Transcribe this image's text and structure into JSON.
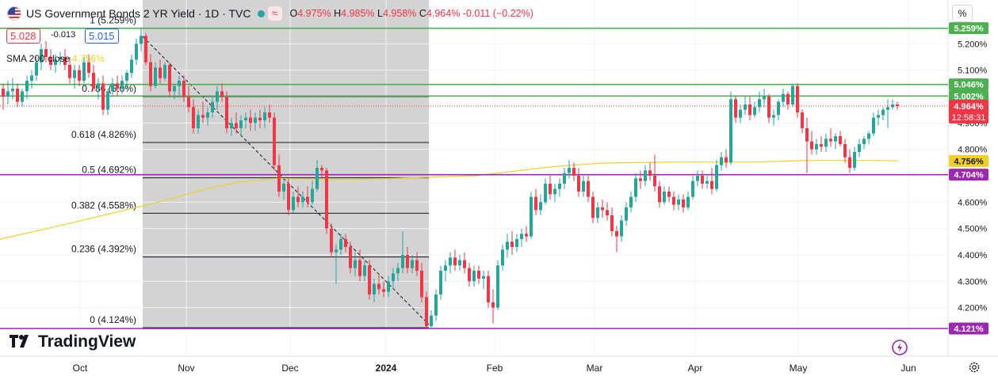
{
  "header": {
    "title": "US Government Bonds 2 YR Yield · 1D · TVC",
    "open_label": "O",
    "open": "4.975%",
    "high_label": "H",
    "high": "4.985%",
    "low_label": "L",
    "low": "4.958%",
    "close_label": "C",
    "close": "4.964%",
    "change": "-0.011 (−0.22%)",
    "approx_icon": "≈"
  },
  "quote": {
    "sell": "5.028",
    "spread": "-0.013",
    "buy": "5.015"
  },
  "sma": {
    "label": "SMA 200 close",
    "value": "4.756%"
  },
  "percent_button": "%",
  "logo_text": "TradingView",
  "colors": {
    "up": "#26a69a",
    "down": "#f23645",
    "sma": "#f2d024",
    "green_line": "#4caf50",
    "purple_line": "#9c27b0",
    "fib_zone": "#c4c4c4"
  },
  "chart_data": {
    "type": "candlestick",
    "ylim": [
      4.085,
      5.345
    ],
    "y_ticks": [
      "5.200%",
      "5.100%",
      "4.900%",
      "4.800%",
      "4.600%",
      "4.500%",
      "4.400%",
      "4.300%",
      "4.200%"
    ],
    "x_ticks": [
      "Oct",
      "Nov",
      "Dec",
      "2024",
      "Feb",
      "Mar",
      "Apr",
      "May",
      "Jun"
    ],
    "fibonacci": [
      {
        "label": "1 (5.259%)",
        "value": 5.259
      },
      {
        "label": "0.786 (5.0%)",
        "value": 5.0
      },
      {
        "label": "0.618 (4.826%)",
        "value": 4.826
      },
      {
        "label": "0.5 (4.692%)",
        "value": 4.692
      },
      {
        "label": "0.382 (4.558%)",
        "value": 4.558
      },
      {
        "label": "0.236 (4.392%)",
        "value": 4.392
      },
      {
        "label": "0 (4.124%)",
        "value": 4.124
      }
    ],
    "horizontal_levels": [
      {
        "label": "5.259%",
        "value": 5.259,
        "color": "green"
      },
      {
        "label": "5.046%",
        "value": 5.046,
        "color": "green"
      },
      {
        "label": "5.002%",
        "value": 5.002,
        "color": "green"
      },
      {
        "label": "4.704%",
        "value": 4.704,
        "color": "purple"
      },
      {
        "label": "4.121%",
        "value": 4.121,
        "color": "purple"
      }
    ],
    "current_price": {
      "label": "4.964%",
      "value": 4.964,
      "countdown": "12:58:31"
    },
    "sma_value": {
      "label": "4.756%",
      "value": 4.756
    },
    "sma_path": [
      [
        0,
        4.46
      ],
      [
        60,
        4.5
      ],
      [
        130,
        4.55
      ],
      [
        200,
        4.6
      ],
      [
        260,
        4.65
      ],
      [
        300,
        4.675
      ],
      [
        350,
        4.69
      ],
      [
        420,
        4.685
      ],
      [
        500,
        4.69
      ],
      [
        600,
        4.7
      ],
      [
        700,
        4.735
      ],
      [
        760,
        4.748
      ],
      [
        850,
        4.752
      ],
      [
        950,
        4.752
      ],
      [
        1020,
        4.758
      ],
      [
        1100,
        4.758
      ],
      [
        1133,
        4.756
      ]
    ],
    "candles": [
      [
        4,
        5.03,
        5.05,
        4.95,
        5.0
      ],
      [
        10,
        5.0,
        5.06,
        4.97,
        5.02
      ],
      [
        16,
        5.02,
        5.07,
        4.99,
        5.03
      ],
      [
        22,
        5.03,
        5.05,
        4.96,
        4.98
      ],
      [
        28,
        4.98,
        5.03,
        4.96,
        5.02
      ],
      [
        34,
        5.02,
        5.08,
        4.99,
        5.06
      ],
      [
        40,
        5.06,
        5.1,
        5.03,
        5.08
      ],
      [
        46,
        5.08,
        5.15,
        5.06,
        5.13
      ],
      [
        52,
        5.13,
        5.2,
        5.1,
        5.18
      ],
      [
        58,
        5.18,
        5.21,
        5.13,
        5.15
      ],
      [
        64,
        5.15,
        5.18,
        5.1,
        5.12
      ],
      [
        70,
        5.12,
        5.16,
        5.09,
        5.14
      ],
      [
        76,
        5.14,
        5.17,
        5.12,
        5.15
      ],
      [
        82,
        5.15,
        5.18,
        5.1,
        5.12
      ],
      [
        88,
        5.12,
        5.15,
        5.05,
        5.07
      ],
      [
        94,
        5.07,
        5.12,
        5.03,
        5.1
      ],
      [
        100,
        5.1,
        5.12,
        5.04,
        5.06
      ],
      [
        106,
        5.06,
        5.15,
        5.05,
        5.13
      ],
      [
        112,
        5.13,
        5.16,
        5.07,
        5.09
      ],
      [
        118,
        5.09,
        5.12,
        5.02,
        5.03
      ],
      [
        124,
        5.03,
        5.07,
        4.99,
        5.05
      ],
      [
        130,
        5.05,
        5.08,
        4.93,
        4.95
      ],
      [
        136,
        4.95,
        5.03,
        4.93,
        5.02
      ],
      [
        142,
        5.02,
        5.07,
        5.0,
        5.05
      ],
      [
        148,
        5.05,
        5.08,
        5.0,
        5.03
      ],
      [
        154,
        5.03,
        5.08,
        5.01,
        5.06
      ],
      [
        160,
        5.06,
        5.1,
        5.03,
        5.09
      ],
      [
        166,
        5.09,
        5.16,
        5.07,
        5.14
      ],
      [
        172,
        5.14,
        5.22,
        5.12,
        5.2
      ],
      [
        178,
        5.2,
        5.26,
        5.17,
        5.23
      ],
      [
        184,
        5.23,
        5.24,
        5.12,
        5.13
      ],
      [
        190,
        5.13,
        5.16,
        5.02,
        5.04
      ],
      [
        196,
        5.04,
        5.13,
        5.03,
        5.11
      ],
      [
        202,
        5.11,
        5.14,
        5.05,
        5.07
      ],
      [
        208,
        5.07,
        5.13,
        5.06,
        5.12
      ],
      [
        214,
        5.12,
        5.13,
        5.0,
        5.02
      ],
      [
        220,
        5.02,
        5.05,
        4.99,
        5.04
      ],
      [
        226,
        5.04,
        5.08,
        5.0,
        5.06
      ],
      [
        232,
        5.06,
        5.08,
        4.98,
        5.0
      ],
      [
        238,
        5.0,
        5.04,
        4.94,
        4.96
      ],
      [
        244,
        4.96,
        4.99,
        4.86,
        4.88
      ],
      [
        250,
        4.88,
        4.95,
        4.86,
        4.93
      ],
      [
        256,
        4.93,
        4.98,
        4.9,
        4.92
      ],
      [
        262,
        4.92,
        4.96,
        4.89,
        4.94
      ],
      [
        268,
        4.94,
        5.0,
        4.92,
        4.98
      ],
      [
        274,
        4.98,
        5.04,
        4.95,
        5.02
      ],
      [
        280,
        5.02,
        5.05,
        4.98,
        5.0
      ],
      [
        286,
        5.0,
        5.02,
        4.86,
        4.88
      ],
      [
        292,
        4.88,
        4.92,
        4.85,
        4.9
      ],
      [
        298,
        4.9,
        4.94,
        4.86,
        4.88
      ],
      [
        304,
        4.88,
        4.93,
        4.85,
        4.91
      ],
      [
        310,
        4.91,
        4.94,
        4.88,
        4.92
      ],
      [
        316,
        4.92,
        4.95,
        4.87,
        4.9
      ],
      [
        322,
        4.9,
        4.94,
        4.87,
        4.92
      ],
      [
        328,
        4.92,
        4.95,
        4.88,
        4.91
      ],
      [
        334,
        4.91,
        4.96,
        4.88,
        4.94
      ],
      [
        340,
        4.94,
        4.97,
        4.9,
        4.92
      ],
      [
        346,
        4.92,
        4.94,
        4.72,
        4.74
      ],
      [
        352,
        4.74,
        4.78,
        4.62,
        4.64
      ],
      [
        358,
        4.64,
        4.69,
        4.61,
        4.67
      ],
      [
        364,
        4.67,
        4.69,
        4.55,
        4.57
      ],
      [
        370,
        4.57,
        4.64,
        4.56,
        4.62
      ],
      [
        376,
        4.62,
        4.66,
        4.58,
        4.6
      ],
      [
        382,
        4.6,
        4.64,
        4.58,
        4.62
      ],
      [
        388,
        4.62,
        4.66,
        4.58,
        4.6
      ],
      [
        394,
        4.6,
        4.68,
        4.59,
        4.65
      ],
      [
        400,
        4.65,
        4.76,
        4.64,
        4.73
      ],
      [
        406,
        4.73,
        4.74,
        4.69,
        4.72
      ],
      [
        412,
        4.72,
        4.73,
        4.48,
        4.5
      ],
      [
        418,
        4.5,
        4.52,
        4.39,
        4.41
      ],
      [
        424,
        4.41,
        4.44,
        4.29,
        4.42
      ],
      [
        430,
        4.42,
        4.48,
        4.4,
        4.46
      ],
      [
        436,
        4.46,
        4.48,
        4.41,
        4.43
      ],
      [
        442,
        4.43,
        4.45,
        4.33,
        4.35
      ],
      [
        448,
        4.35,
        4.41,
        4.32,
        4.38
      ],
      [
        454,
        4.38,
        4.42,
        4.3,
        4.32
      ],
      [
        460,
        4.32,
        4.38,
        4.3,
        4.36
      ],
      [
        466,
        4.36,
        4.38,
        4.23,
        4.25
      ],
      [
        472,
        4.25,
        4.31,
        4.22,
        4.29
      ],
      [
        478,
        4.29,
        4.33,
        4.25,
        4.27
      ],
      [
        484,
        4.27,
        4.3,
        4.24,
        4.26
      ],
      [
        490,
        4.26,
        4.32,
        4.24,
        4.3
      ],
      [
        496,
        4.3,
        4.35,
        4.27,
        4.33
      ],
      [
        502,
        4.33,
        4.37,
        4.3,
        4.35
      ],
      [
        508,
        4.35,
        4.49,
        4.33,
        4.4
      ],
      [
        514,
        4.4,
        4.43,
        4.33,
        4.35
      ],
      [
        520,
        4.35,
        4.4,
        4.33,
        4.38
      ],
      [
        526,
        4.38,
        4.41,
        4.32,
        4.34
      ],
      [
        532,
        4.34,
        4.37,
        4.22,
        4.24
      ],
      [
        538,
        4.24,
        4.26,
        4.12,
        4.13
      ],
      [
        544,
        4.13,
        4.19,
        4.12,
        4.17
      ],
      [
        550,
        4.17,
        4.27,
        4.15,
        4.25
      ],
      [
        556,
        4.25,
        4.36,
        4.23,
        4.34
      ],
      [
        562,
        4.34,
        4.38,
        4.3,
        4.36
      ],
      [
        568,
        4.36,
        4.41,
        4.33,
        4.39
      ],
      [
        574,
        4.39,
        4.42,
        4.34,
        4.36
      ],
      [
        580,
        4.36,
        4.4,
        4.34,
        4.38
      ],
      [
        586,
        4.38,
        4.41,
        4.33,
        4.35
      ],
      [
        592,
        4.35,
        4.37,
        4.28,
        4.3
      ],
      [
        598,
        4.3,
        4.36,
        4.28,
        4.34
      ],
      [
        604,
        4.34,
        4.36,
        4.29,
        4.31
      ],
      [
        610,
        4.31,
        4.34,
        4.27,
        4.32
      ],
      [
        616,
        4.32,
        4.34,
        4.2,
        4.22
      ],
      [
        622,
        4.22,
        4.27,
        4.14,
        4.2
      ],
      [
        628,
        4.2,
        4.38,
        4.19,
        4.36
      ],
      [
        634,
        4.36,
        4.44,
        4.34,
        4.42
      ],
      [
        640,
        4.42,
        4.48,
        4.39,
        4.45
      ],
      [
        646,
        4.45,
        4.49,
        4.4,
        4.43
      ],
      [
        652,
        4.43,
        4.48,
        4.41,
        4.46
      ],
      [
        658,
        4.46,
        4.5,
        4.43,
        4.48
      ],
      [
        664,
        4.48,
        4.51,
        4.45,
        4.47
      ],
      [
        670,
        4.47,
        4.64,
        4.46,
        4.62
      ],
      [
        676,
        4.62,
        4.65,
        4.55,
        4.57
      ],
      [
        682,
        4.57,
        4.63,
        4.55,
        4.6
      ],
      [
        688,
        4.6,
        4.69,
        4.59,
        4.67
      ],
      [
        694,
        4.67,
        4.7,
        4.61,
        4.63
      ],
      [
        700,
        4.63,
        4.67,
        4.6,
        4.65
      ],
      [
        706,
        4.65,
        4.69,
        4.62,
        4.67
      ],
      [
        712,
        4.67,
        4.73,
        4.65,
        4.71
      ],
      [
        718,
        4.71,
        4.76,
        4.69,
        4.73
      ],
      [
        724,
        4.73,
        4.75,
        4.68,
        4.7
      ],
      [
        730,
        4.7,
        4.73,
        4.62,
        4.64
      ],
      [
        736,
        4.64,
        4.7,
        4.62,
        4.68
      ],
      [
        742,
        4.68,
        4.7,
        4.6,
        4.62
      ],
      [
        748,
        4.62,
        4.64,
        4.52,
        4.54
      ],
      [
        754,
        4.54,
        4.6,
        4.52,
        4.58
      ],
      [
        760,
        4.58,
        4.61,
        4.54,
        4.57
      ],
      [
        766,
        4.57,
        4.6,
        4.53,
        4.55
      ],
      [
        772,
        4.55,
        4.58,
        4.47,
        4.49
      ],
      [
        778,
        4.49,
        4.51,
        4.41,
        4.47
      ],
      [
        784,
        4.47,
        4.55,
        4.45,
        4.53
      ],
      [
        790,
        4.53,
        4.6,
        4.51,
        4.58
      ],
      [
        796,
        4.58,
        4.64,
        4.56,
        4.62
      ],
      [
        802,
        4.62,
        4.71,
        4.6,
        4.69
      ],
      [
        808,
        4.69,
        4.72,
        4.65,
        4.68
      ],
      [
        814,
        4.68,
        4.74,
        4.66,
        4.72
      ],
      [
        820,
        4.72,
        4.75,
        4.68,
        4.7
      ],
      [
        826,
        4.7,
        4.78,
        4.64,
        4.66
      ],
      [
        832,
        4.66,
        4.68,
        4.58,
        4.6
      ],
      [
        838,
        4.6,
        4.66,
        4.59,
        4.64
      ],
      [
        844,
        4.64,
        4.66,
        4.6,
        4.62
      ],
      [
        850,
        4.62,
        4.64,
        4.57,
        4.59
      ],
      [
        856,
        4.59,
        4.63,
        4.57,
        4.61
      ],
      [
        862,
        4.61,
        4.63,
        4.56,
        4.58
      ],
      [
        868,
        4.58,
        4.64,
        4.57,
        4.62
      ],
      [
        874,
        4.62,
        4.7,
        4.61,
        4.68
      ],
      [
        880,
        4.68,
        4.72,
        4.66,
        4.7
      ],
      [
        886,
        4.7,
        4.72,
        4.65,
        4.67
      ],
      [
        892,
        4.67,
        4.7,
        4.65,
        4.68
      ],
      [
        898,
        4.68,
        4.73,
        4.63,
        4.65
      ],
      [
        904,
        4.65,
        4.76,
        4.64,
        4.74
      ],
      [
        910,
        4.74,
        4.79,
        4.72,
        4.77
      ],
      [
        916,
        4.77,
        4.8,
        4.73,
        4.75
      ],
      [
        922,
        4.75,
        5.02,
        4.74,
        4.99
      ],
      [
        928,
        4.99,
        5.0,
        4.9,
        4.92
      ],
      [
        934,
        4.92,
        4.97,
        4.9,
        4.95
      ],
      [
        940,
        4.95,
        5.0,
        4.93,
        4.97
      ],
      [
        946,
        4.97,
        5.0,
        4.91,
        4.93
      ],
      [
        952,
        4.93,
        4.98,
        4.92,
        4.96
      ],
      [
        958,
        4.96,
        5.02,
        4.94,
        4.99
      ],
      [
        964,
        4.99,
        5.03,
        4.96,
        5.0
      ],
      [
        970,
        5.0,
        5.01,
        4.9,
        4.92
      ],
      [
        976,
        4.92,
        4.95,
        4.89,
        4.93
      ],
      [
        982,
        4.93,
        4.99,
        4.91,
        4.98
      ],
      [
        988,
        4.98,
        5.03,
        4.96,
        5.01
      ],
      [
        994,
        5.01,
        5.02,
        4.95,
        4.97
      ],
      [
        1000,
        4.97,
        5.05,
        4.96,
        5.04
      ],
      [
        1006,
        5.04,
        5.05,
        4.92,
        4.94
      ],
      [
        1012,
        4.94,
        4.95,
        4.86,
        4.88
      ],
      [
        1018,
        4.88,
        4.92,
        4.71,
        4.83
      ],
      [
        1024,
        4.83,
        4.87,
        4.78,
        4.8
      ],
      [
        1030,
        4.8,
        4.84,
        4.78,
        4.82
      ],
      [
        1036,
        4.82,
        4.85,
        4.79,
        4.81
      ],
      [
        1042,
        4.81,
        4.86,
        4.79,
        4.84
      ],
      [
        1048,
        4.84,
        4.88,
        4.81,
        4.83
      ],
      [
        1054,
        4.83,
        4.86,
        4.8,
        4.85
      ],
      [
        1060,
        4.85,
        4.87,
        4.81,
        4.82
      ],
      [
        1066,
        4.82,
        4.84,
        4.75,
        4.77
      ],
      [
        1072,
        4.77,
        4.8,
        4.71,
        4.73
      ],
      [
        1078,
        4.73,
        4.81,
        4.72,
        4.79
      ],
      [
        1084,
        4.79,
        4.84,
        4.77,
        4.82
      ],
      [
        1090,
        4.82,
        4.85,
        4.8,
        4.84
      ],
      [
        1096,
        4.84,
        4.87,
        4.82,
        4.86
      ],
      [
        1102,
        4.86,
        4.94,
        4.85,
        4.92
      ],
      [
        1108,
        4.92,
        4.95,
        4.89,
        4.93
      ],
      [
        1114,
        4.93,
        4.96,
        4.91,
        4.95
      ],
      [
        1120,
        4.95,
        4.99,
        4.88,
        4.96
      ],
      [
        1126,
        4.96,
        4.99,
        4.95,
        4.97
      ],
      [
        1132,
        4.97,
        4.98,
        4.95,
        4.964
      ]
    ]
  }
}
